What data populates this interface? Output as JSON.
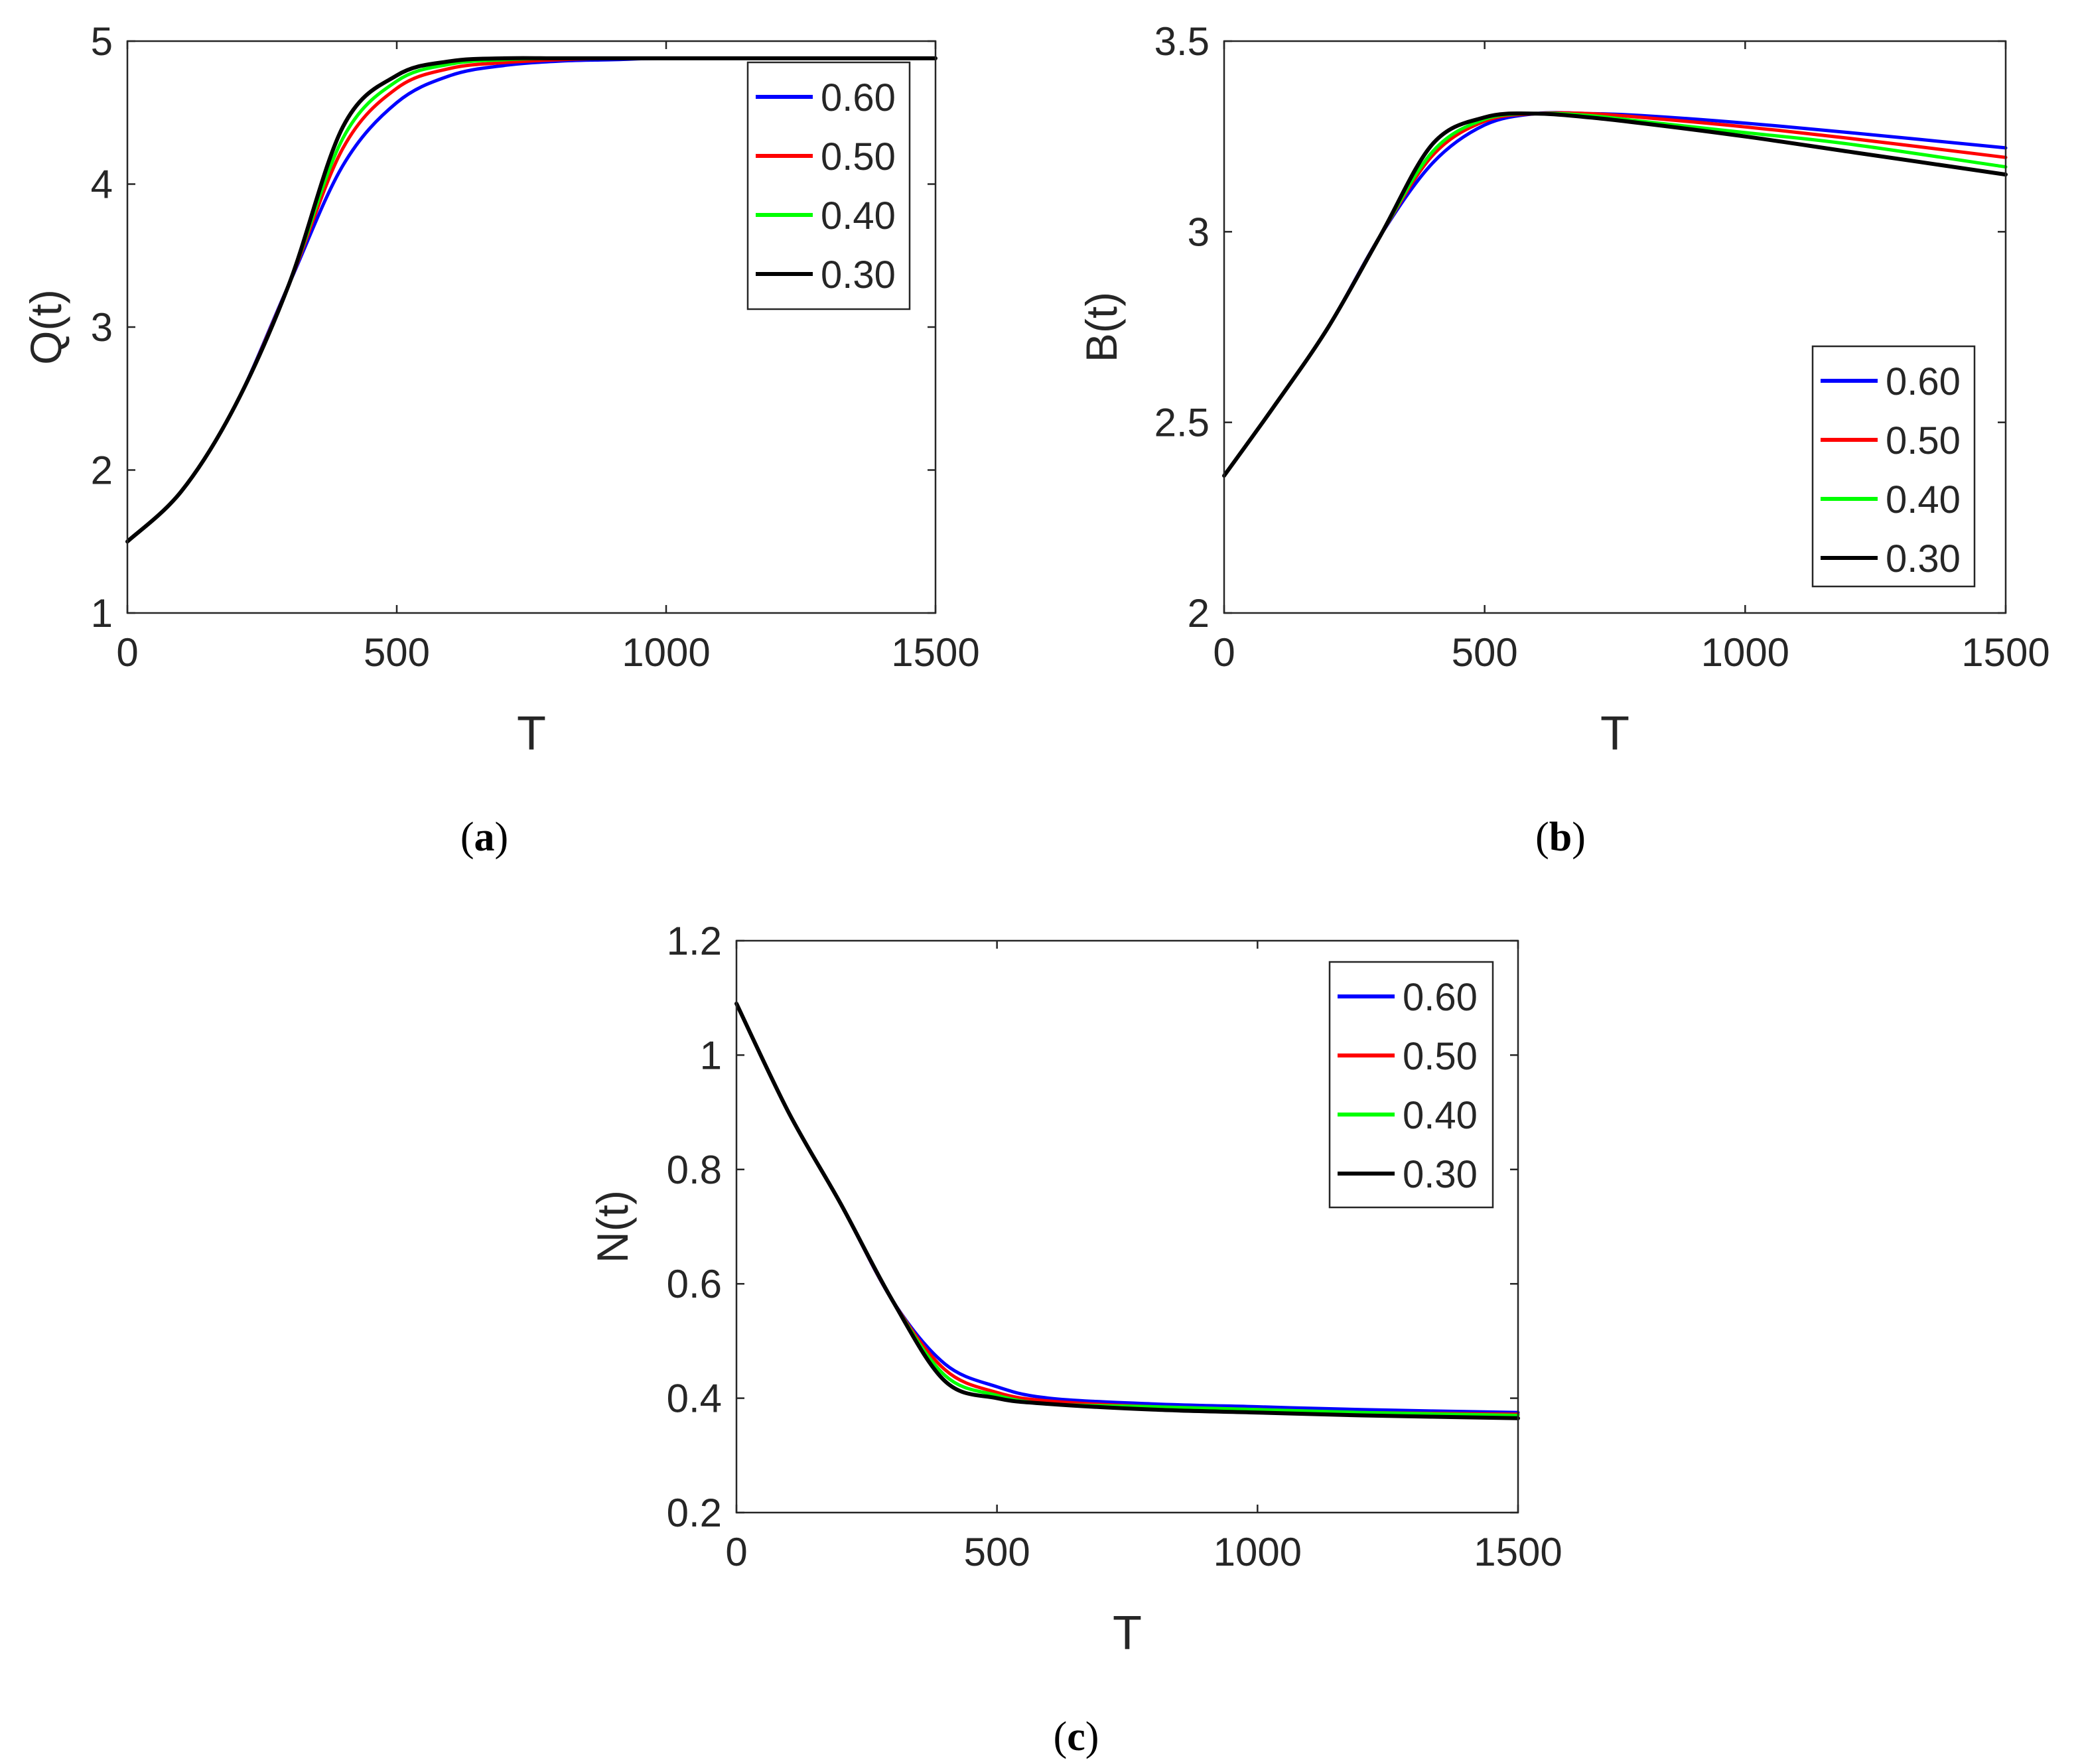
{
  "legend_title": "",
  "colors": {
    "0.60": "#0000ff",
    "0.50": "#ff0000",
    "0.40": "#00ff00",
    "0.30": "#000000",
    "axis": "#262626"
  },
  "chart_data": [
    {
      "id": "a",
      "type": "line",
      "caption_label": "a",
      "xlabel": "T",
      "ylabel": "Q(t)",
      "title": "",
      "xlim": [
        0,
        1500
      ],
      "ylim": [
        1,
        5
      ],
      "xticks": [
        0,
        500,
        1000,
        1500
      ],
      "xtick_labels": [
        "0",
        "500",
        "1000",
        "1500"
      ],
      "yticks": [
        1,
        2,
        3,
        4,
        5
      ],
      "ytick_labels": [
        "1",
        "2",
        "3",
        "4",
        "5"
      ],
      "legend_position": "top-right",
      "x": [
        0,
        100,
        200,
        300,
        400,
        500,
        600,
        700,
        800,
        900,
        1000,
        1200,
        1500
      ],
      "series": [
        {
          "name": "0.60",
          "color": "#0000ff",
          "values": [
            1.5,
            1.85,
            2.45,
            3.3,
            4.13,
            4.57,
            4.76,
            4.83,
            4.86,
            4.87,
            4.88,
            4.88,
            4.88
          ]
        },
        {
          "name": "0.50",
          "color": "#ff0000",
          "values": [
            1.5,
            1.85,
            2.45,
            3.3,
            4.25,
            4.67,
            4.81,
            4.85,
            4.87,
            4.88,
            4.88,
            4.88,
            4.88
          ]
        },
        {
          "name": "0.40",
          "color": "#00ff00",
          "values": [
            1.5,
            1.85,
            2.45,
            3.3,
            4.32,
            4.72,
            4.84,
            4.87,
            4.88,
            4.88,
            4.88,
            4.88,
            4.88
          ]
        },
        {
          "name": "0.30",
          "color": "#000000",
          "values": [
            1.5,
            1.85,
            2.45,
            3.3,
            4.4,
            4.76,
            4.86,
            4.88,
            4.88,
            4.88,
            4.88,
            4.88,
            4.88
          ]
        }
      ]
    },
    {
      "id": "b",
      "type": "line",
      "caption_label": "b",
      "xlabel": "T",
      "ylabel": "B(t)",
      "title": "",
      "xlim": [
        0,
        1500
      ],
      "ylim": [
        2,
        3.5
      ],
      "xticks": [
        0,
        500,
        1000,
        1500
      ],
      "xtick_labels": [
        "0",
        "500",
        "1000",
        "1500"
      ],
      "yticks": [
        2,
        2.5,
        3,
        3.5
      ],
      "ytick_labels": [
        "2",
        "2.5",
        "3",
        "3.5"
      ],
      "legend_position": "right",
      "x": [
        0,
        100,
        200,
        300,
        400,
        500,
        600,
        700,
        800,
        1000,
        1200,
        1500
      ],
      "series": [
        {
          "name": "0.60",
          "color": "#0000ff",
          "values": [
            2.36,
            2.55,
            2.75,
            2.99,
            3.18,
            3.28,
            3.31,
            3.31,
            3.305,
            3.285,
            3.26,
            3.22
          ]
        },
        {
          "name": "0.50",
          "color": "#ff0000",
          "values": [
            2.36,
            2.55,
            2.75,
            2.99,
            3.2,
            3.29,
            3.31,
            3.31,
            3.3,
            3.275,
            3.245,
            3.195
          ]
        },
        {
          "name": "0.40",
          "color": "#00ff00",
          "values": [
            2.36,
            2.55,
            2.75,
            2.99,
            3.21,
            3.295,
            3.31,
            3.305,
            3.29,
            3.26,
            3.23,
            3.17
          ]
        },
        {
          "name": "0.30",
          "color": "#000000",
          "values": [
            2.36,
            2.55,
            2.75,
            2.99,
            3.23,
            3.3,
            3.31,
            3.3,
            3.285,
            3.25,
            3.21,
            3.15
          ]
        }
      ]
    },
    {
      "id": "c",
      "type": "line",
      "caption_label": "c",
      "xlabel": "T",
      "ylabel": "N(t)",
      "title": "",
      "xlim": [
        0,
        1500
      ],
      "ylim": [
        0.2,
        1.2
      ],
      "xticks": [
        0,
        500,
        1000,
        1500
      ],
      "xtick_labels": [
        "0",
        "500",
        "1000",
        "1500"
      ],
      "yticks": [
        0.2,
        0.4,
        0.6,
        0.8,
        1.0,
        1.2
      ],
      "ytick_labels": [
        "0.2",
        "0.4",
        "0.6",
        "0.8",
        "1",
        "1.2"
      ],
      "legend_position": "top-right",
      "x": [
        0,
        100,
        200,
        300,
        400,
        500,
        600,
        800,
        1000,
        1200,
        1500
      ],
      "series": [
        {
          "name": "0.60",
          "color": "#0000ff",
          "values": [
            1.09,
            0.9,
            0.74,
            0.57,
            0.46,
            0.42,
            0.4,
            0.39,
            0.385,
            0.38,
            0.375
          ]
        },
        {
          "name": "0.50",
          "color": "#ff0000",
          "values": [
            1.09,
            0.9,
            0.74,
            0.57,
            0.45,
            0.41,
            0.395,
            0.385,
            0.38,
            0.375,
            0.372
          ]
        },
        {
          "name": "0.40",
          "color": "#00ff00",
          "values": [
            1.09,
            0.9,
            0.74,
            0.57,
            0.44,
            0.405,
            0.39,
            0.385,
            0.38,
            0.375,
            0.37
          ]
        },
        {
          "name": "0.30",
          "color": "#000000",
          "values": [
            1.09,
            0.9,
            0.74,
            0.57,
            0.43,
            0.4,
            0.39,
            0.38,
            0.375,
            0.37,
            0.365
          ]
        }
      ]
    }
  ]
}
